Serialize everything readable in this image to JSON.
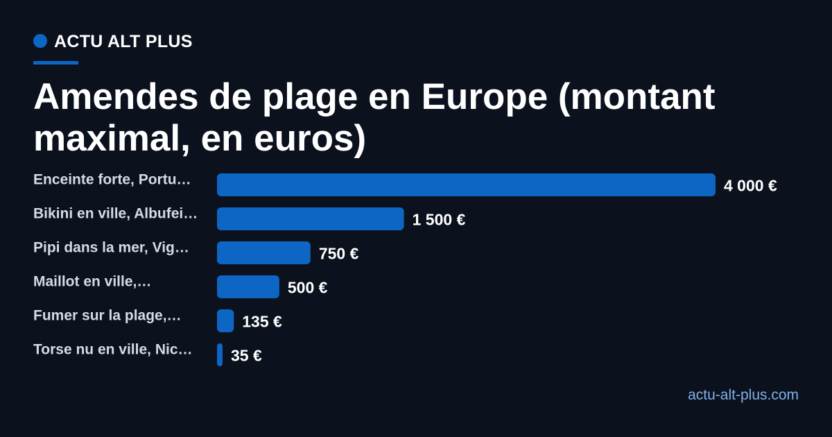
{
  "brand": {
    "name": "ACTU ALT PLUS",
    "accent_color": "#0d66c4"
  },
  "site": "actu-alt-plus.com",
  "chart_data": {
    "type": "bar",
    "orientation": "horizontal",
    "title": "Amendes de plage en Europe (montant maximal, en euros)",
    "categories": [
      "Enceinte forte, Portu…",
      "Bikini en ville, Albufei…",
      "Pipi dans la mer, Vig…",
      "Maillot en ville,…",
      "Fumer sur la plage,…",
      "Torse nu en ville, Nic…"
    ],
    "values": [
      4000,
      1500,
      750,
      500,
      135,
      35
    ],
    "value_labels": [
      "4 000 €",
      "1 500 €",
      "750 €",
      "500 €",
      "135 €",
      "35 €"
    ],
    "xlim": [
      0,
      4000
    ],
    "bar_color": "#0d66c4",
    "grid": false,
    "legend": "none"
  }
}
